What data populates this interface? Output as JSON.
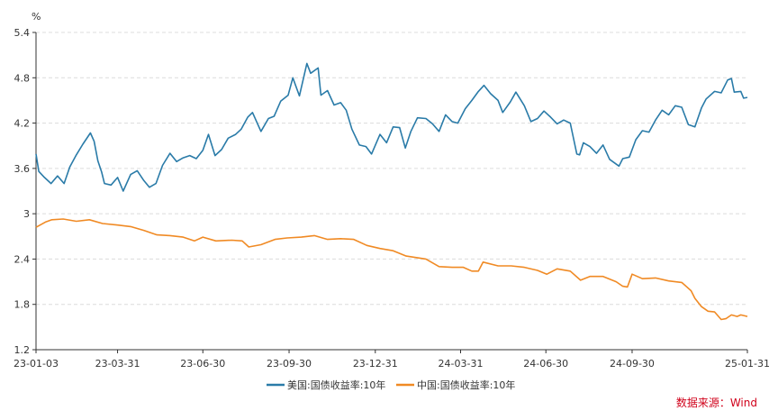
{
  "chart_data": {
    "type": "line",
    "unit_label": "%",
    "source_label": "数据来源：Wind",
    "ylim": [
      1.2,
      5.4
    ],
    "y_ticks": [
      1.2,
      1.8,
      2.4,
      3,
      3.6,
      4.2,
      4.8,
      5.4
    ],
    "y_tick_labels": [
      "1.2",
      "1.8",
      "2.4",
      "3",
      "3.6",
      "4.2",
      "4.8",
      "5.4"
    ],
    "x_range": [
      "2023-01-03",
      "2025-01-31"
    ],
    "x_ticks": [
      "2023-01-03",
      "2023-03-31",
      "2023-06-30",
      "2023-09-30",
      "2023-12-31",
      "2024-03-31",
      "2024-06-30",
      "2024-09-30",
      "2025-01-31"
    ],
    "x_tick_labels": [
      "23-01-03",
      "23-03-31",
      "23-06-30",
      "23-09-30",
      "23-12-31",
      "24-03-31",
      "24-06-30",
      "24-09-30",
      "25-01-31"
    ],
    "grid": true,
    "legend_position": "bottom",
    "series": [
      {
        "name": "美国:国债收益率:10年",
        "color": "#2a7ba8",
        "points": [
          [
            "2023-01-03",
            3.79
          ],
          [
            "2023-01-06",
            3.56
          ],
          [
            "2023-01-12",
            3.48
          ],
          [
            "2023-01-19",
            3.4
          ],
          [
            "2023-01-26",
            3.5
          ],
          [
            "2023-02-02",
            3.4
          ],
          [
            "2023-02-08",
            3.62
          ],
          [
            "2023-02-15",
            3.78
          ],
          [
            "2023-02-22",
            3.92
          ],
          [
            "2023-03-02",
            4.07
          ],
          [
            "2023-03-06",
            3.96
          ],
          [
            "2023-03-10",
            3.7
          ],
          [
            "2023-03-14",
            3.55
          ],
          [
            "2023-03-17",
            3.4
          ],
          [
            "2023-03-24",
            3.38
          ],
          [
            "2023-03-31",
            3.48
          ],
          [
            "2023-04-06",
            3.3
          ],
          [
            "2023-04-14",
            3.52
          ],
          [
            "2023-04-21",
            3.57
          ],
          [
            "2023-04-28",
            3.44
          ],
          [
            "2023-05-04",
            3.35
          ],
          [
            "2023-05-11",
            3.4
          ],
          [
            "2023-05-18",
            3.64
          ],
          [
            "2023-05-26",
            3.8
          ],
          [
            "2023-06-02",
            3.69
          ],
          [
            "2023-06-09",
            3.74
          ],
          [
            "2023-06-16",
            3.77
          ],
          [
            "2023-06-23",
            3.73
          ],
          [
            "2023-06-30",
            3.84
          ],
          [
            "2023-07-06",
            4.05
          ],
          [
            "2023-07-13",
            3.77
          ],
          [
            "2023-07-20",
            3.85
          ],
          [
            "2023-07-27",
            4.0
          ],
          [
            "2023-08-04",
            4.05
          ],
          [
            "2023-08-10",
            4.12
          ],
          [
            "2023-08-17",
            4.28
          ],
          [
            "2023-08-22",
            4.34
          ],
          [
            "2023-08-31",
            4.09
          ],
          [
            "2023-09-08",
            4.26
          ],
          [
            "2023-09-14",
            4.29
          ],
          [
            "2023-09-21",
            4.49
          ],
          [
            "2023-09-29",
            4.57
          ],
          [
            "2023-10-04",
            4.8
          ],
          [
            "2023-10-11",
            4.56
          ],
          [
            "2023-10-19",
            4.99
          ],
          [
            "2023-10-23",
            4.86
          ],
          [
            "2023-10-31",
            4.93
          ],
          [
            "2023-11-03",
            4.57
          ],
          [
            "2023-11-10",
            4.63
          ],
          [
            "2023-11-17",
            4.44
          ],
          [
            "2023-11-24",
            4.47
          ],
          [
            "2023-11-30",
            4.37
          ],
          [
            "2023-12-06",
            4.12
          ],
          [
            "2023-12-14",
            3.91
          ],
          [
            "2023-12-21",
            3.89
          ],
          [
            "2023-12-27",
            3.79
          ],
          [
            "2024-01-05",
            4.05
          ],
          [
            "2024-01-12",
            3.94
          ],
          [
            "2024-01-19",
            4.15
          ],
          [
            "2024-01-26",
            4.14
          ],
          [
            "2024-02-01",
            3.87
          ],
          [
            "2024-02-07",
            4.09
          ],
          [
            "2024-02-14",
            4.27
          ],
          [
            "2024-02-23",
            4.26
          ],
          [
            "2024-03-01",
            4.19
          ],
          [
            "2024-03-08",
            4.09
          ],
          [
            "2024-03-15",
            4.31
          ],
          [
            "2024-03-22",
            4.22
          ],
          [
            "2024-03-28",
            4.2
          ],
          [
            "2024-04-05",
            4.39
          ],
          [
            "2024-04-12",
            4.5
          ],
          [
            "2024-04-19",
            4.62
          ],
          [
            "2024-04-25",
            4.7
          ],
          [
            "2024-05-02",
            4.59
          ],
          [
            "2024-05-10",
            4.5
          ],
          [
            "2024-05-15",
            4.34
          ],
          [
            "2024-05-23",
            4.48
          ],
          [
            "2024-05-29",
            4.61
          ],
          [
            "2024-06-07",
            4.43
          ],
          [
            "2024-06-14",
            4.22
          ],
          [
            "2024-06-21",
            4.26
          ],
          [
            "2024-06-28",
            4.36
          ],
          [
            "2024-07-05",
            4.28
          ],
          [
            "2024-07-12",
            4.19
          ],
          [
            "2024-07-19",
            4.24
          ],
          [
            "2024-07-26",
            4.2
          ],
          [
            "2024-08-02",
            3.79
          ],
          [
            "2024-08-05",
            3.78
          ],
          [
            "2024-08-09",
            3.94
          ],
          [
            "2024-08-16",
            3.89
          ],
          [
            "2024-08-23",
            3.8
          ],
          [
            "2024-08-30",
            3.91
          ],
          [
            "2024-09-06",
            3.72
          ],
          [
            "2024-09-16",
            3.63
          ],
          [
            "2024-09-20",
            3.73
          ],
          [
            "2024-09-27",
            3.75
          ],
          [
            "2024-10-04",
            3.98
          ],
          [
            "2024-10-11",
            4.1
          ],
          [
            "2024-10-18",
            4.08
          ],
          [
            "2024-10-25",
            4.24
          ],
          [
            "2024-11-01",
            4.37
          ],
          [
            "2024-11-08",
            4.31
          ],
          [
            "2024-11-15",
            4.43
          ],
          [
            "2024-11-22",
            4.41
          ],
          [
            "2024-11-29",
            4.18
          ],
          [
            "2024-12-06",
            4.15
          ],
          [
            "2024-12-13",
            4.4
          ],
          [
            "2024-12-18",
            4.52
          ],
          [
            "2024-12-27",
            4.62
          ],
          [
            "2025-01-03",
            4.6
          ],
          [
            "2025-01-10",
            4.77
          ],
          [
            "2025-01-14",
            4.79
          ],
          [
            "2025-01-17",
            4.61
          ],
          [
            "2025-01-24",
            4.62
          ],
          [
            "2025-01-27",
            4.53
          ],
          [
            "2025-01-31",
            4.54
          ]
        ]
      },
      {
        "name": "中国:国债收益率:10年",
        "color": "#f08a24",
        "points": [
          [
            "2023-01-03",
            2.82
          ],
          [
            "2023-01-13",
            2.89
          ],
          [
            "2023-01-20",
            2.92
          ],
          [
            "2023-02-01",
            2.93
          ],
          [
            "2023-02-15",
            2.9
          ],
          [
            "2023-03-01",
            2.92
          ],
          [
            "2023-03-15",
            2.87
          ],
          [
            "2023-03-31",
            2.85
          ],
          [
            "2023-04-14",
            2.83
          ],
          [
            "2023-04-28",
            2.78
          ],
          [
            "2023-05-12",
            2.72
          ],
          [
            "2023-05-26",
            2.71
          ],
          [
            "2023-06-09",
            2.69
          ],
          [
            "2023-06-21",
            2.64
          ],
          [
            "2023-06-30",
            2.69
          ],
          [
            "2023-07-14",
            2.64
          ],
          [
            "2023-07-31",
            2.65
          ],
          [
            "2023-08-11",
            2.64
          ],
          [
            "2023-08-18",
            2.56
          ],
          [
            "2023-08-31",
            2.59
          ],
          [
            "2023-09-15",
            2.66
          ],
          [
            "2023-09-28",
            2.68
          ],
          [
            "2023-10-13",
            2.69
          ],
          [
            "2023-10-27",
            2.71
          ],
          [
            "2023-11-10",
            2.66
          ],
          [
            "2023-11-24",
            2.67
          ],
          [
            "2023-12-08",
            2.66
          ],
          [
            "2023-12-22",
            2.58
          ],
          [
            "2024-01-05",
            2.54
          ],
          [
            "2024-01-19",
            2.51
          ],
          [
            "2024-02-02",
            2.44
          ],
          [
            "2024-02-23",
            2.4
          ],
          [
            "2024-03-08",
            2.3
          ],
          [
            "2024-03-22",
            2.29
          ],
          [
            "2024-04-03",
            2.29
          ],
          [
            "2024-04-12",
            2.24
          ],
          [
            "2024-04-19",
            2.24
          ],
          [
            "2024-04-24",
            2.36
          ],
          [
            "2024-05-10",
            2.31
          ],
          [
            "2024-05-24",
            2.31
          ],
          [
            "2024-06-07",
            2.29
          ],
          [
            "2024-06-21",
            2.25
          ],
          [
            "2024-07-01",
            2.2
          ],
          [
            "2024-07-12",
            2.27
          ],
          [
            "2024-07-26",
            2.24
          ],
          [
            "2024-08-06",
            2.12
          ],
          [
            "2024-08-16",
            2.17
          ],
          [
            "2024-08-30",
            2.17
          ],
          [
            "2024-09-13",
            2.1
          ],
          [
            "2024-09-20",
            2.04
          ],
          [
            "2024-09-25",
            2.03
          ],
          [
            "2024-09-30",
            2.2
          ],
          [
            "2024-10-11",
            2.14
          ],
          [
            "2024-10-25",
            2.15
          ],
          [
            "2024-11-08",
            2.11
          ],
          [
            "2024-11-22",
            2.09
          ],
          [
            "2024-12-02",
            1.98
          ],
          [
            "2024-12-06",
            1.88
          ],
          [
            "2024-12-13",
            1.77
          ],
          [
            "2024-12-20",
            1.71
          ],
          [
            "2024-12-27",
            1.7
          ],
          [
            "2025-01-03",
            1.6
          ],
          [
            "2025-01-08",
            1.61
          ],
          [
            "2025-01-14",
            1.66
          ],
          [
            "2025-01-20",
            1.64
          ],
          [
            "2025-01-24",
            1.66
          ],
          [
            "2025-01-31",
            1.64
          ]
        ]
      }
    ]
  }
}
